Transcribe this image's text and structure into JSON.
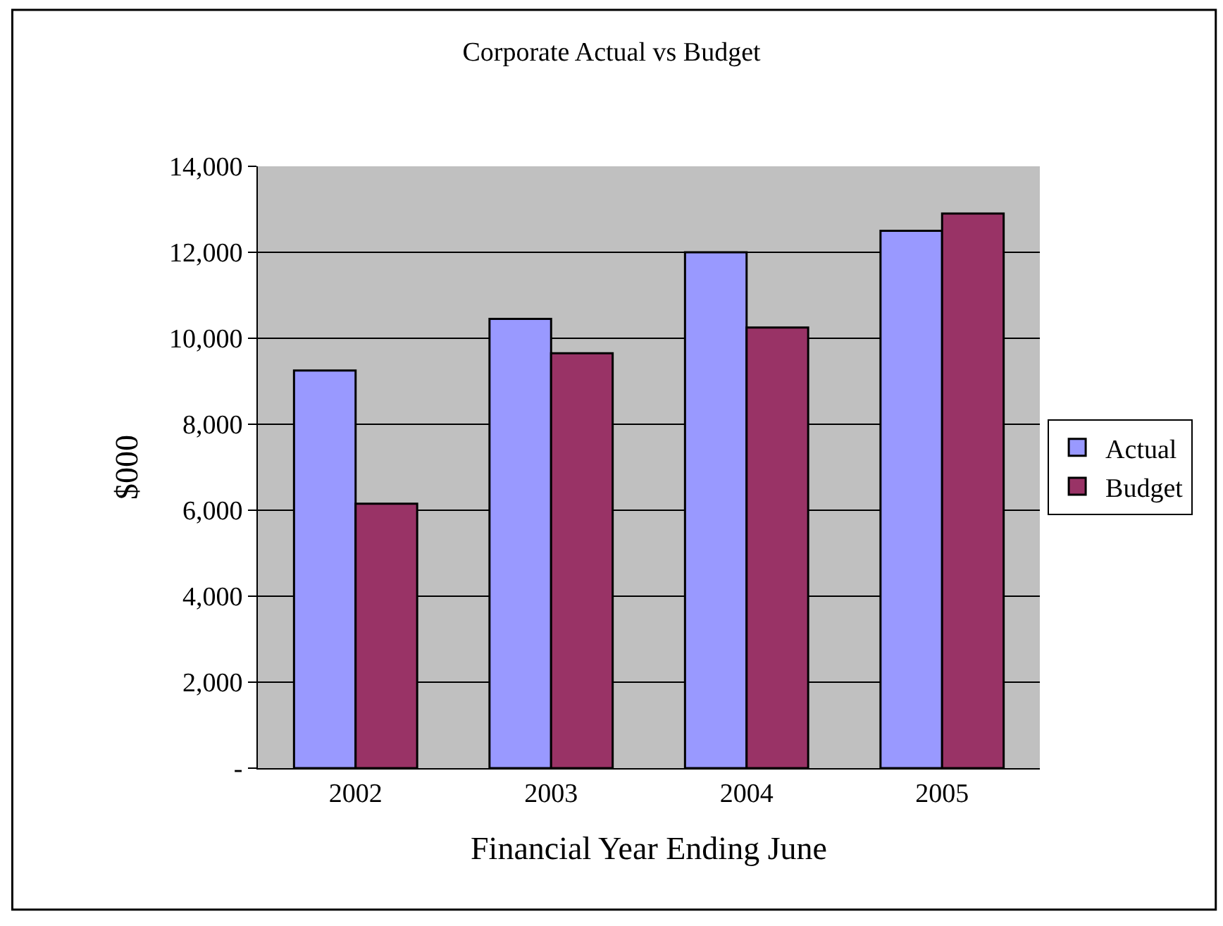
{
  "chart_data": {
    "type": "bar",
    "title": "Corporate Actual vs Budget",
    "xlabel": "Financial Year Ending June",
    "ylabel": "$000",
    "categories": [
      "2002",
      "2003",
      "2004",
      "2005"
    ],
    "series": [
      {
        "name": "Actual",
        "color": "#9999ff",
        "values": [
          9250,
          10450,
          12000,
          12500
        ]
      },
      {
        "name": "Budget",
        "color": "#993366",
        "values": [
          6150,
          9650,
          10250,
          12900
        ]
      }
    ],
    "ylim": [
      0,
      14000
    ],
    "yticks": [
      {
        "value": 0,
        "label": "-"
      },
      {
        "value": 2000,
        "label": "2,000"
      },
      {
        "value": 4000,
        "label": "4,000"
      },
      {
        "value": 6000,
        "label": "6,000"
      },
      {
        "value": 8000,
        "label": "8,000"
      },
      {
        "value": 10000,
        "label": "10,000"
      },
      {
        "value": 12000,
        "label": "12,000"
      },
      {
        "value": 14000,
        "label": "14,000"
      }
    ],
    "grid": "y",
    "legend": "right"
  }
}
